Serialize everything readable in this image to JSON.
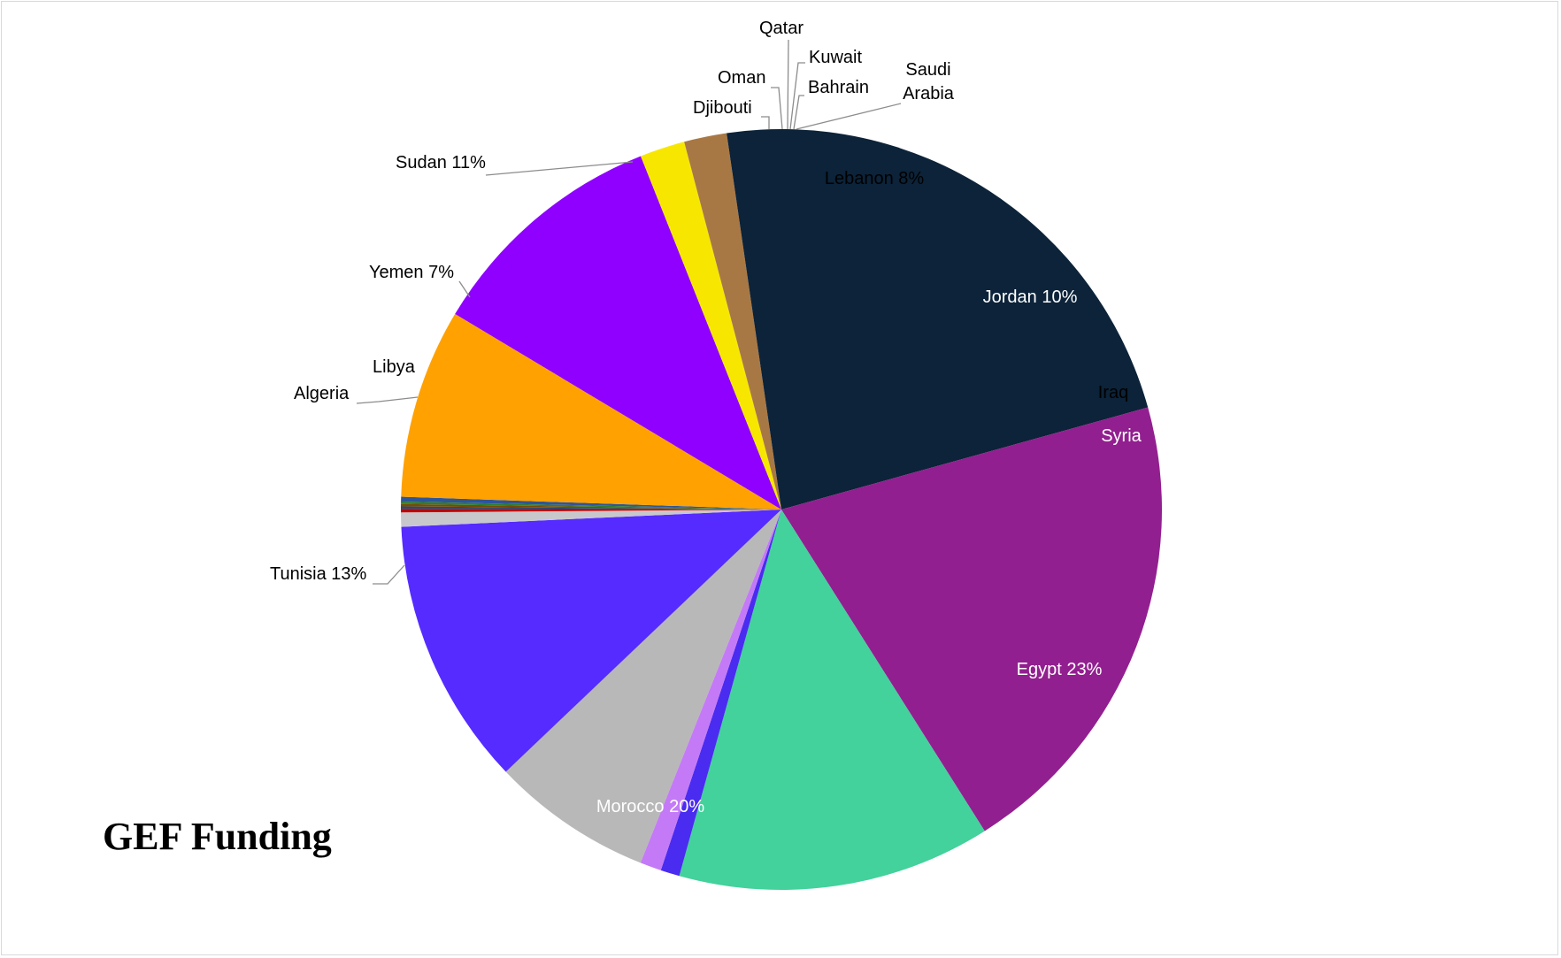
{
  "chart_data": {
    "type": "pie",
    "title": "GEF Funding",
    "slices": [
      {
        "name": "Saudi Arabia",
        "label": [
          "Saudi",
          "Arabia"
        ],
        "value": 0.2,
        "color": "#2f5597"
      },
      {
        "name": "Lebanon",
        "label": [
          "Lebanon 8%"
        ],
        "value": 8.0,
        "color": "#ffa100"
      },
      {
        "name": "Jordan",
        "label": [
          "Jordan 10%"
        ],
        "value": 10.3,
        "color": "#8f00ff"
      },
      {
        "name": "Iraq",
        "label": [
          "Iraq"
        ],
        "value": 1.9,
        "color": "#f7e700"
      },
      {
        "name": "Syria",
        "label": [
          "Syria"
        ],
        "value": 1.8,
        "color": "#a87844"
      },
      {
        "name": "Egypt",
        "label": [
          "Egypt 23%"
        ],
        "value": 22.8,
        "color": "#0c2339"
      },
      {
        "name": "Morocco",
        "label": [
          "Morocco 20%"
        ],
        "value": 20.2,
        "color": "#921f8f"
      },
      {
        "name": "Tunisia",
        "label": [
          "Tunisia 13%"
        ],
        "value": 13.2,
        "color": "#43d19c"
      },
      {
        "name": "Algeria",
        "label": [
          "Algeria"
        ],
        "value": 0.8,
        "color": "#4a2bf0"
      },
      {
        "name": "Libya",
        "label": [
          "Libya"
        ],
        "value": 0.9,
        "color": "#c47af6"
      },
      {
        "name": "Yemen",
        "label": [
          "Yemen 7%"
        ],
        "value": 6.8,
        "color": "#b8b8b8"
      },
      {
        "name": "Sudan",
        "label": [
          "Sudan 11%"
        ],
        "value": 11.3,
        "color": "#552bff"
      },
      {
        "name": "Djibouti",
        "label": [
          "Djibouti"
        ],
        "value": 0.6,
        "color": "#c8c8cc"
      },
      {
        "name": "Oman",
        "label": [
          "Oman"
        ],
        "value": 0.15,
        "color": "#c00000"
      },
      {
        "name": "Qatar",
        "label": [
          "Qatar"
        ],
        "value": 0.1,
        "color": "#1f4e79"
      },
      {
        "name": "Kuwait",
        "label": [
          "Kuwait"
        ],
        "value": 0.1,
        "color": "#7a4a00"
      },
      {
        "name": "Bahrain",
        "label": [
          "Bahrain"
        ],
        "value": 0.1,
        "color": "#2e7d32"
      }
    ]
  }
}
